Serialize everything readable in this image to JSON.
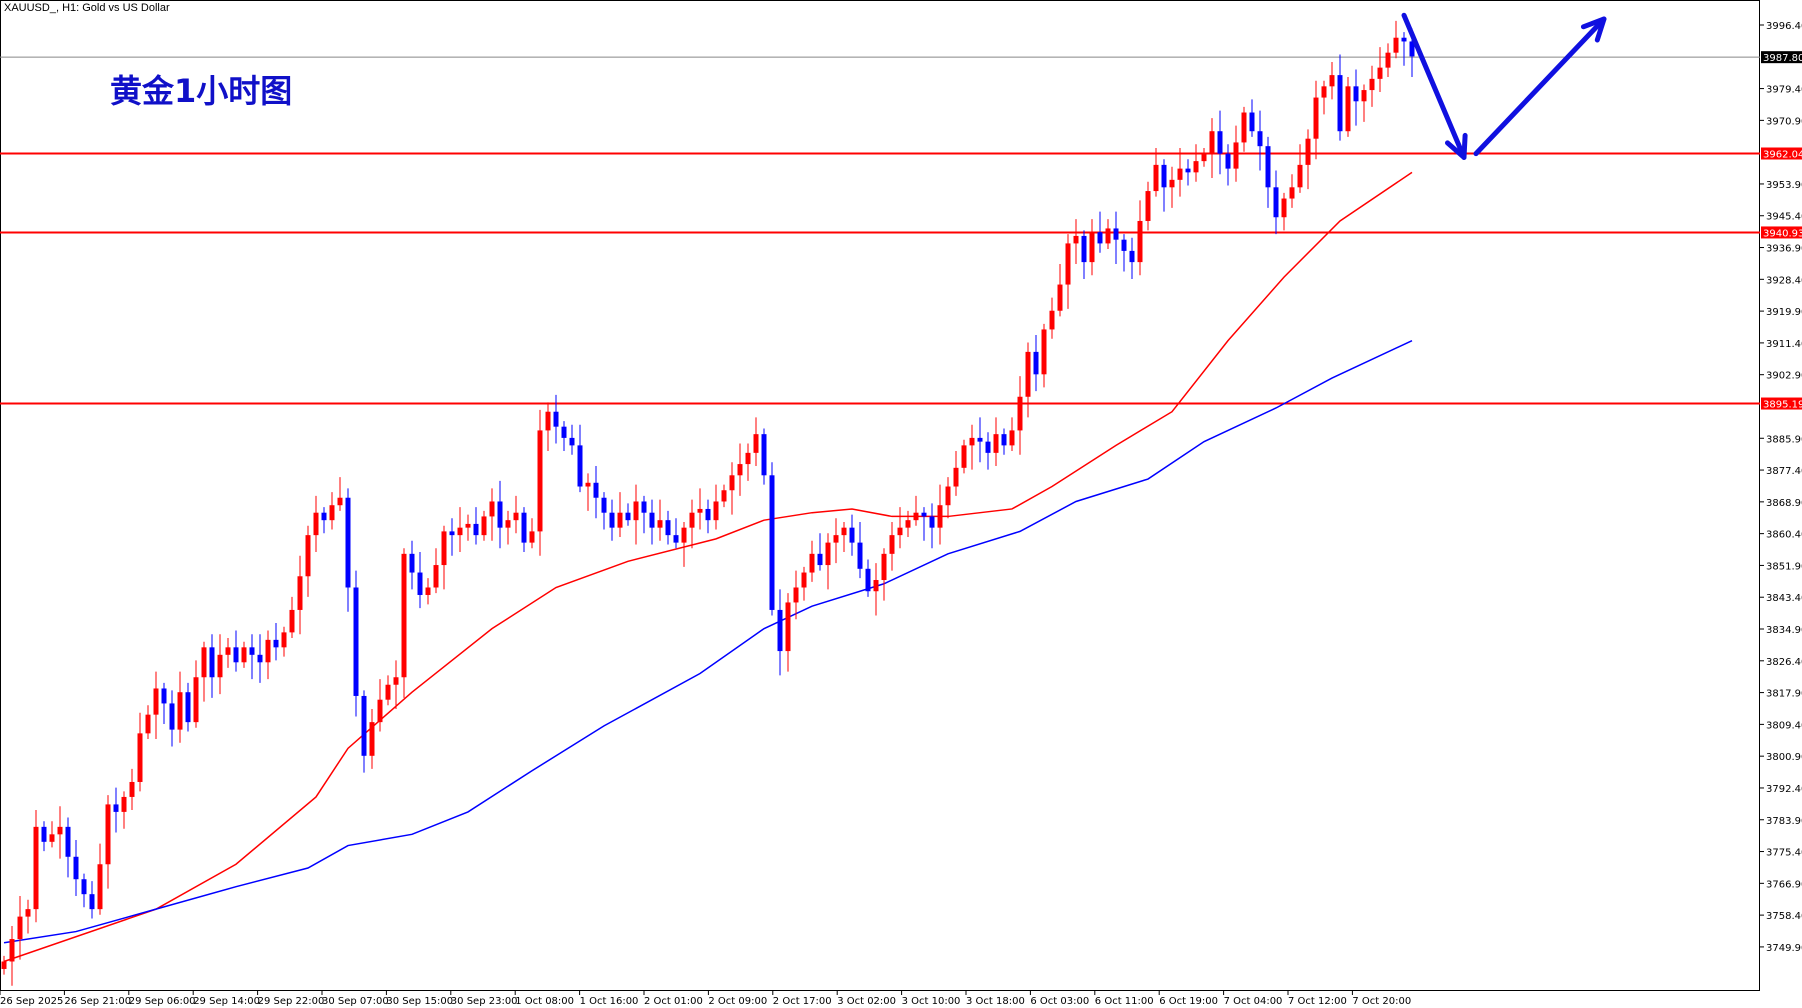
{
  "header": {
    "title": "XAUUSD_, H1:  Gold vs US Dollar"
  },
  "annotation": {
    "label": "黄金1小时图",
    "color": "#1010c8"
  },
  "chart_data": {
    "type": "candlestick",
    "title": "XAUUSD_, H1:  Gold vs US Dollar",
    "ylim": [
      3743,
      3999
    ],
    "y_ticks": [
      "3996.40",
      "3979.40",
      "3970.90",
      "3953.90",
      "3945.40",
      "3936.90",
      "3928.40",
      "3919.90",
      "3911.40",
      "3902.90",
      "3885.90",
      "3877.40",
      "3868.90",
      "3860.40",
      "3851.90",
      "3843.40",
      "3834.90",
      "3826.40",
      "3817.90",
      "3809.40",
      "3800.90",
      "3792.40",
      "3783.90",
      "3775.40",
      "3766.90",
      "3758.40",
      "3749.90"
    ],
    "x_ticks": [
      "26 Sep 2025",
      "26 Sep 21:00",
      "29 Sep 06:00",
      "29 Sep 14:00",
      "29 Sep 22:00",
      "30 Sep 07:00",
      "30 Sep 15:00",
      "30 Sep 23:00",
      "1 Oct 08:00",
      "1 Oct 16:00",
      "2 Oct 01:00",
      "2 Oct 09:00",
      "2 Oct 17:00",
      "3 Oct 02:00",
      "3 Oct 10:00",
      "3 Oct 18:00",
      "6 Oct 03:00",
      "6 Oct 11:00",
      "6 Oct 19:00",
      "7 Oct 04:00",
      "7 Oct 12:00",
      "7 Oct 20:00"
    ],
    "first_open": 3744,
    "close": [
      3746,
      3752,
      3758,
      3760,
      3782,
      3778,
      3780,
      3782,
      3774,
      3768,
      3764,
      3760,
      3772,
      3788,
      3786,
      3790,
      3794,
      3807,
      3812,
      3819,
      3815,
      3808,
      3818,
      3810,
      3822,
      3830,
      3822,
      3828,
      3830,
      3826,
      3830,
      3828,
      3826,
      3832,
      3830,
      3834,
      3840,
      3849,
      3860,
      3866,
      3864,
      3868,
      3870,
      3846,
      3817,
      3801,
      3810,
      3816,
      3820,
      3822,
      3855,
      3850,
      3844,
      3846,
      3852,
      3861,
      3860,
      3862,
      3863,
      3860,
      3865,
      3869,
      3862,
      3864,
      3866,
      3858,
      3861,
      3888,
      3893,
      3889,
      3886,
      3884,
      3873,
      3874,
      3870,
      3866,
      3862,
      3866,
      3864,
      3869,
      3866,
      3862,
      3864,
      3860,
      3858,
      3862,
      3866,
      3867,
      3864,
      3869,
      3872,
      3876,
      3879,
      3882,
      3887,
      3876,
      3840,
      3829,
      3842,
      3846,
      3850,
      3855,
      3852,
      3858,
      3860,
      3862,
      3858,
      3851,
      3845,
      3848,
      3855,
      3860,
      3862,
      3864,
      3866,
      3865,
      3862,
      3868,
      3873,
      3878,
      3884,
      3886,
      3885,
      3882,
      3887,
      3884,
      3888,
      3897,
      3909,
      3903,
      3915,
      3920,
      3927,
      3938,
      3940,
      3933,
      3941,
      3938,
      3942,
      3939,
      3936,
      3933,
      3944,
      3952,
      3959,
      3953,
      3955,
      3958,
      3957,
      3960,
      3962,
      3968,
      3962,
      3958,
      3965,
      3973,
      3968,
      3964,
      3953,
      3945,
      3950,
      3953,
      3959,
      3966,
      3977,
      3980,
      3983,
      3968,
      3980,
      3976,
      3979,
      3982,
      3985,
      3989,
      3993,
      3992,
      3988
    ],
    "ma_red": [
      [
        0,
        3746
      ],
      [
        19,
        3760
      ],
      [
        29,
        3772
      ],
      [
        39,
        3790
      ],
      [
        43,
        3803
      ],
      [
        51,
        3818
      ],
      [
        61,
        3835
      ],
      [
        69,
        3846
      ],
      [
        78,
        3853
      ],
      [
        89,
        3859
      ],
      [
        95,
        3864
      ],
      [
        101,
        3866
      ],
      [
        106,
        3867
      ],
      [
        111,
        3865
      ],
      [
        118,
        3865
      ],
      [
        126,
        3867
      ],
      [
        131,
        3873
      ],
      [
        139,
        3884
      ],
      [
        146,
        3893
      ],
      [
        153,
        3912
      ],
      [
        160,
        3929
      ],
      [
        167,
        3944
      ],
      [
        176,
        3957
      ]
    ],
    "ma_blue": [
      [
        0,
        3751
      ],
      [
        9,
        3754
      ],
      [
        19,
        3760
      ],
      [
        29,
        3766
      ],
      [
        38,
        3771
      ],
      [
        43,
        3777
      ],
      [
        51,
        3780
      ],
      [
        58,
        3786
      ],
      [
        66,
        3797
      ],
      [
        75,
        3809
      ],
      [
        87,
        3823
      ],
      [
        95,
        3835
      ],
      [
        101,
        3841
      ],
      [
        110,
        3847
      ],
      [
        118,
        3855
      ],
      [
        127,
        3861
      ],
      [
        134,
        3869
      ],
      [
        143,
        3875
      ],
      [
        150,
        3885
      ],
      [
        159,
        3894
      ],
      [
        166,
        3902
      ],
      [
        176,
        3912
      ]
    ],
    "levels": [
      {
        "label": "3962.04",
        "value": 3962.04,
        "color": "#ff0000"
      },
      {
        "label": "3940.93",
        "value": 3940.93,
        "color": "#ff0000"
      },
      {
        "label": "3895.19",
        "value": 3895.19,
        "color": "#ff0000"
      }
    ],
    "current_price": {
      "label": "3987.80",
      "value": 3987.8
    },
    "arrows": [
      {
        "from": [
          175,
          3999
        ],
        "to": [
          182.5,
          3961
        ],
        "color": "#1010e0"
      },
      {
        "from": [
          184,
          3962
        ],
        "to": [
          200,
          3998
        ],
        "color": "#1010e0"
      }
    ],
    "colors": {
      "up": "#ff0000",
      "down": "#0000ff",
      "ma_red": "#ff0000",
      "ma_blue": "#0000ff"
    }
  }
}
